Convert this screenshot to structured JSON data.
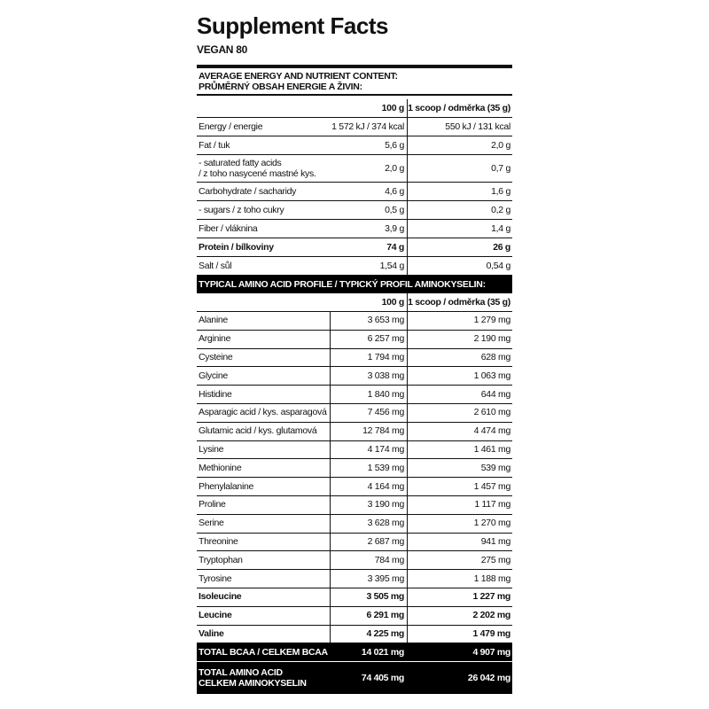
{
  "header": {
    "title": "Supplement Facts",
    "subtitle": "VEGAN 80"
  },
  "nutrition": {
    "heading": [
      "AVERAGE ENERGY AND NUTRIENT CONTENT:",
      "PRŮMĚRNÝ OBSAH ENERGIE A ŽIVIN:"
    ],
    "columns": [
      "100 g",
      "1 scoop / odměrka (35 g)"
    ],
    "rows": [
      {
        "label": [
          "Energy / energie"
        ],
        "per100": "1 572 kJ / 374 kcal",
        "perScoop": "550 kJ / 131 kcal"
      },
      {
        "label": [
          "Fat / tuk"
        ],
        "per100": "5,6 g",
        "perScoop": "2,0 g"
      },
      {
        "label": [
          "- saturated fatty acids",
          "/ z toho nasycené mastné kys."
        ],
        "per100": "2,0 g",
        "perScoop": "0,7 g"
      },
      {
        "label": [
          "Carbohydrate / sacharidy"
        ],
        "per100": "4,6 g",
        "perScoop": "1,6 g"
      },
      {
        "label": [
          "- sugars / z toho cukry"
        ],
        "per100": "0,5 g",
        "perScoop": "0,2 g"
      },
      {
        "label": [
          "Fiber / vláknina"
        ],
        "per100": "3,9 g",
        "perScoop": "1,4 g"
      },
      {
        "label": [
          "Protein / bílkoviny"
        ],
        "per100": "74 g",
        "perScoop": "26 g",
        "bold": true
      },
      {
        "label": [
          "Salt / sůl"
        ],
        "per100": "1,54 g",
        "perScoop": "0,54 g"
      }
    ]
  },
  "amino": {
    "heading": "TYPICAL AMINO ACID PROFILE / TYPICKÝ PROFIL AMINOKYSELIN:",
    "columns": [
      "100 g",
      "1 scoop / odměrka (35 g)"
    ],
    "rows": [
      {
        "label": [
          "Alanine"
        ],
        "per100": "3 653 mg",
        "perScoop": "1 279 mg"
      },
      {
        "label": [
          "Arginine"
        ],
        "per100": "6 257 mg",
        "perScoop": "2 190 mg"
      },
      {
        "label": [
          "Cysteine"
        ],
        "per100": "1 794 mg",
        "perScoop": "628 mg"
      },
      {
        "label": [
          "Glycine"
        ],
        "per100": "3 038 mg",
        "perScoop": "1 063 mg"
      },
      {
        "label": [
          "Histidine"
        ],
        "per100": "1 840 mg",
        "perScoop": "644 mg"
      },
      {
        "label": [
          "Asparagic acid / kys. asparagová"
        ],
        "per100": "7 456 mg",
        "perScoop": "2 610 mg"
      },
      {
        "label": [
          "Glutamic acid / kys. glutamová"
        ],
        "per100": "12 784 mg",
        "perScoop": "4 474 mg"
      },
      {
        "label": [
          "Lysine"
        ],
        "per100": "4 174 mg",
        "perScoop": "1 461 mg"
      },
      {
        "label": [
          "Methionine"
        ],
        "per100": "1 539 mg",
        "perScoop": "539 mg"
      },
      {
        "label": [
          "Phenylalanine"
        ],
        "per100": "4 164 mg",
        "perScoop": "1 457 mg"
      },
      {
        "label": [
          "Proline"
        ],
        "per100": "3 190 mg",
        "perScoop": "1 117 mg"
      },
      {
        "label": [
          "Serine"
        ],
        "per100": "3 628 mg",
        "perScoop": "1 270 mg"
      },
      {
        "label": [
          "Threonine"
        ],
        "per100": "2 687 mg",
        "perScoop": "941 mg"
      },
      {
        "label": [
          "Tryptophan"
        ],
        "per100": "784 mg",
        "perScoop": "275 mg"
      },
      {
        "label": [
          "Tyrosine"
        ],
        "per100": "3 395 mg",
        "perScoop": "1 188 mg"
      },
      {
        "label": [
          "Isoleucine"
        ],
        "per100": "3 505 mg",
        "perScoop": "1 227 mg",
        "bold": true
      },
      {
        "label": [
          "Leucine"
        ],
        "per100": "6 291 mg",
        "perScoop": "2 202 mg",
        "bold": true
      },
      {
        "label": [
          "Valine"
        ],
        "per100": "4 225 mg",
        "perScoop": "1 479 mg",
        "bold": true
      }
    ],
    "totals": [
      {
        "label": [
          "TOTAL BCAA / CELKEM BCAA"
        ],
        "per100": "14 021 mg",
        "perScoop": "4 907 mg"
      },
      {
        "label": [
          "TOTAL AMINO ACID",
          "CELKEM AMINOKYSELIN"
        ],
        "per100": "74 405 mg",
        "perScoop": "26 042 mg"
      }
    ]
  }
}
